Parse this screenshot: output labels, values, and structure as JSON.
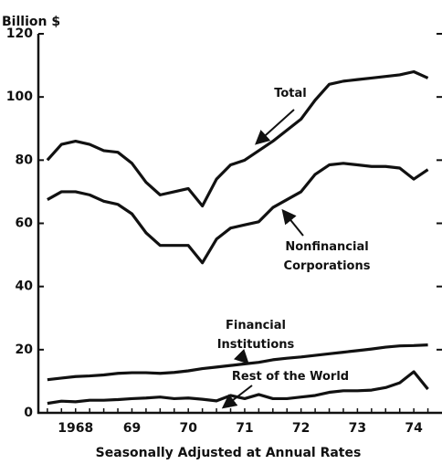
{
  "chart_data": {
    "type": "line",
    "y_label": "Billion $",
    "x_label": "Seasonally Adjusted at Annual Rates",
    "x": [
      1968.0,
      1968.25,
      1968.5,
      1968.75,
      1969.0,
      1969.25,
      1969.5,
      1969.75,
      1970.0,
      1970.25,
      1970.5,
      1970.75,
      1971.0,
      1971.25,
      1971.5,
      1971.75,
      1972.0,
      1972.25,
      1972.5,
      1972.75,
      1973.0,
      1973.25,
      1973.5,
      1973.75,
      1974.0,
      1974.25,
      1974.5,
      1974.75
    ],
    "series": [
      {
        "name": "Total",
        "color": "#111111",
        "values": [
          80,
          85,
          86,
          85,
          83,
          82.5,
          79,
          73,
          69,
          70,
          71,
          65.5,
          74,
          78.5,
          80,
          83,
          86,
          89.5,
          93,
          99,
          104,
          105,
          105.5,
          106,
          106.5,
          107,
          108,
          106
        ]
      },
      {
        "name": "Nonfinancial Corporations",
        "color": "#111111",
        "values": [
          67.5,
          70,
          70,
          69,
          67,
          66,
          63,
          57,
          53,
          53,
          53,
          47.5,
          55,
          58.5,
          59.5,
          60.5,
          65,
          67.5,
          70,
          75.5,
          78.5,
          79,
          78.5,
          78,
          78,
          77.5,
          74,
          77
        ]
      },
      {
        "name": "Financial Institutions",
        "color": "#111111",
        "values": [
          10.5,
          11,
          11.5,
          11.7,
          12,
          12.5,
          12.7,
          12.7,
          12.5,
          12.8,
          13.3,
          14,
          14.5,
          15,
          15.5,
          16,
          16.8,
          17.3,
          17.7,
          18.2,
          18.7,
          19.2,
          19.7,
          20.2,
          20.8,
          21.2,
          21.3,
          21.5
        ]
      },
      {
        "name": "Rest of the World",
        "color": "#111111",
        "values": [
          3,
          3.7,
          3.5,
          4,
          4,
          4.2,
          4.5,
          4.7,
          5,
          4.5,
          4.7,
          4.3,
          3.8,
          5.5,
          4.5,
          5.8,
          4.5,
          4.5,
          5,
          5.5,
          6.5,
          7,
          7,
          7.2,
          8,
          9.5,
          13,
          7.5
        ]
      }
    ],
    "xlim": [
      1967.84,
      1975
    ],
    "xticks": [
      {
        "value": 1968.5,
        "label": "1968"
      },
      {
        "value": 1969.5,
        "label": "69"
      },
      {
        "value": 1970.5,
        "label": "70"
      },
      {
        "value": 1971.5,
        "label": "71"
      },
      {
        "value": 1972.5,
        "label": "72"
      },
      {
        "value": 1973.5,
        "label": "73"
      },
      {
        "value": 1974.5,
        "label": "74"
      }
    ],
    "ylim": [
      0,
      120
    ],
    "yticks": [
      0,
      20,
      40,
      60,
      80,
      100,
      120
    ]
  }
}
